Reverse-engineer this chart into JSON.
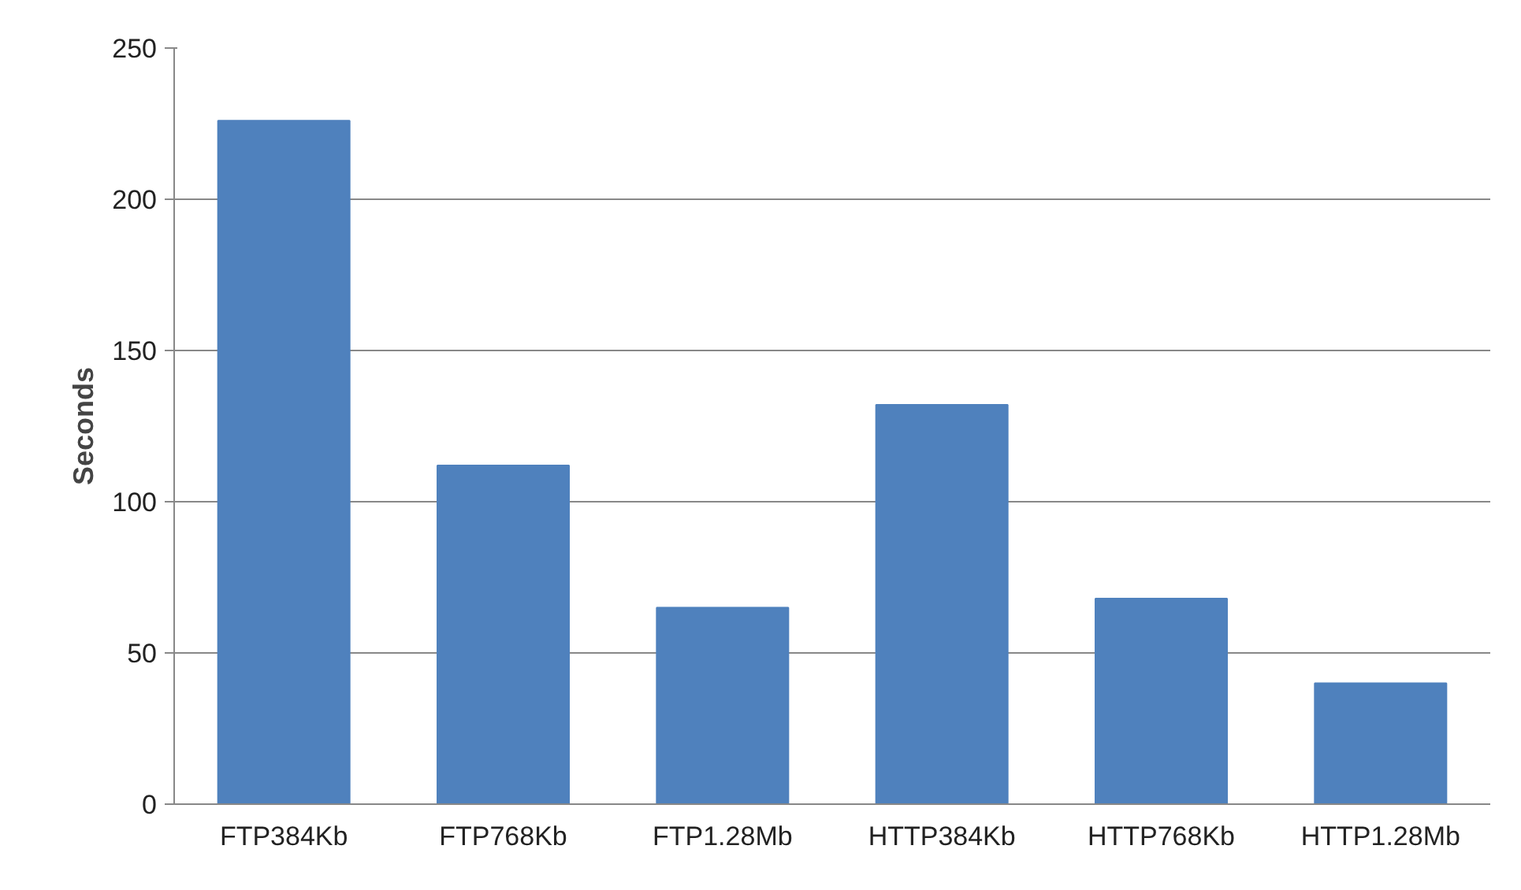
{
  "chart_data": {
    "type": "bar",
    "ylabel": "Seconds",
    "categories": [
      "FTP384Kb",
      "FTP768Kb",
      "FTP1.28Mb",
      "HTTP384Kb",
      "HTTP768Kb",
      "HTTP1.28Mb"
    ],
    "values": [
      226,
      112,
      65,
      132,
      68,
      40
    ],
    "color": "#4f81bd",
    "ylim": [
      0,
      250
    ],
    "yticks": [
      0,
      50,
      100,
      150,
      200,
      250
    ],
    "grid": "y"
  }
}
